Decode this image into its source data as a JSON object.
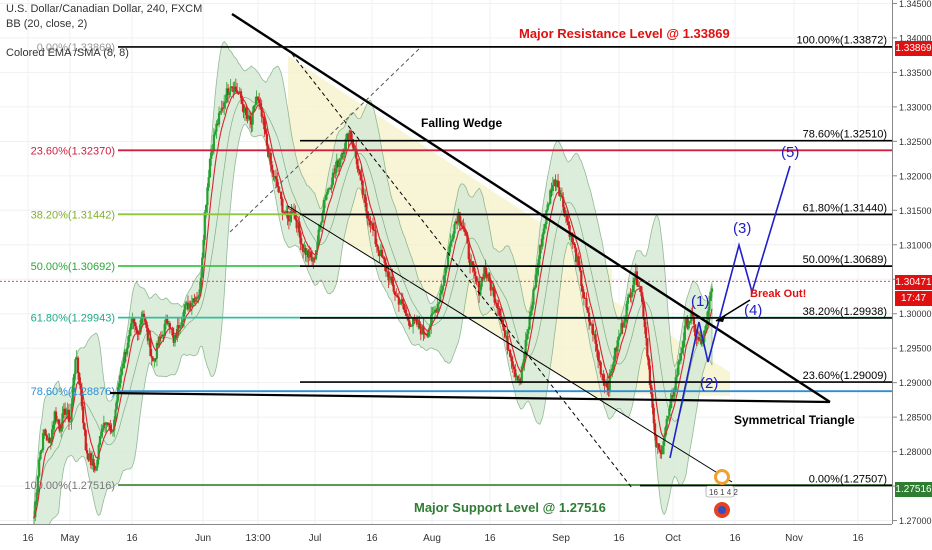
{
  "header": {
    "symbol_line": "U.S. Dollar/Canadian Dollar, 240, FXCM",
    "indicator_bb": "BB (20, close, 2)",
    "indicator_ema": "Colored EMA /SMA (8, 8)"
  },
  "price_badges": {
    "resistance": "1.33869",
    "current": "1.30471",
    "countdown": "17:47",
    "support": "1.27516"
  },
  "colors": {
    "bull_candle": "#26a030",
    "bear_candle": "#d02020",
    "band_fill": "#d6ead6",
    "wedge_fill": "#f5f2c8",
    "elliott": "#2020c8",
    "resistance": "#e01010",
    "support": "#2e7d32"
  },
  "chart_data": {
    "type": "candlestick",
    "y_axis": {
      "ylim": [
        1.2695,
        1.3455
      ],
      "ticks": [
        "1.34500",
        "1.34000",
        "1.33500",
        "1.33000",
        "1.32500",
        "1.32000",
        "1.31500",
        "1.31000",
        "1.30500",
        "1.30000",
        "1.29500",
        "1.29000",
        "1.28500",
        "1.28000",
        "1.27500",
        "1.27000"
      ]
    },
    "x_axis": {
      "ticks": [
        "16",
        "May",
        "16",
        "Jun",
        "13:00",
        "Jul",
        "16",
        "Aug",
        "16",
        "Sep",
        "16",
        "Oct",
        "16",
        "Nov",
        "16"
      ]
    },
    "price_path": [
      1.2705,
      1.279,
      1.283,
      1.281,
      1.2855,
      1.2835,
      1.286,
      1.2845,
      1.294,
      1.289,
      1.2805,
      1.2785,
      1.2775,
      1.2835,
      1.285,
      1.282,
      1.2875,
      1.2925,
      1.2955,
      1.2985,
      1.297,
      1.3005,
      1.2965,
      1.293,
      1.2955,
      1.2975,
      1.2995,
      1.2955,
      1.2985,
      1.3005,
      1.3015,
      1.3025,
      1.303,
      1.3145,
      1.3225,
      1.3265,
      1.329,
      1.3315,
      1.3335,
      1.3325,
      1.3312,
      1.3285,
      1.3275,
      1.3315,
      1.3285,
      1.3245,
      1.3205,
      1.3185,
      1.3155,
      1.3135,
      1.3155,
      1.3125,
      1.3095,
      1.3085,
      1.3075,
      1.3115,
      1.3165,
      1.3185,
      1.3205,
      1.3225,
      1.3245,
      1.3265,
      1.3235,
      1.3195,
      1.3155,
      1.3135,
      1.3105,
      1.3085,
      1.3065,
      1.3045,
      1.3025,
      1.3015,
      1.2995,
      1.2985,
      1.2985,
      1.2975,
      1.2975,
      1.2995,
      1.3015,
      1.3045,
      1.3085,
      1.3125,
      1.3145,
      1.3125,
      1.3085,
      1.3055,
      1.3035,
      1.3065,
      1.3045,
      1.3025,
      1.3005,
      1.2965,
      1.2945,
      1.2915,
      1.2905,
      1.2955,
      1.3005,
      1.3055,
      1.3105,
      1.3145,
      1.3185,
      1.3195,
      1.3165,
      1.3135,
      1.3105,
      1.3075,
      1.3035,
      1.2995,
      1.2975,
      1.2935,
      1.2905,
      1.2895,
      1.2935,
      1.2965,
      1.2995,
      1.3025,
      1.3055,
      1.3045,
      1.2985,
      1.2905,
      1.2815,
      1.2795,
      1.2835,
      1.2865,
      1.2905,
      1.2945,
      1.2985,
      1.2995,
      1.2965,
      1.2955,
      1.2985,
      1.3045
    ],
    "fib_levels_left": [
      {
        "label": "0.00%(1.33869)",
        "price": 1.33869
      },
      {
        "label": "23.60%(1.32370)",
        "price": 1.3237
      },
      {
        "label": "38.20%(1.31442)",
        "price": 1.31442
      },
      {
        "label": "50.00%(1.30692)",
        "price": 1.30692
      },
      {
        "label": "61.80%(1.29943)",
        "price": 1.29943
      },
      {
        "label": "78.60%(1.28876)",
        "price": 1.28876
      },
      {
        "label": "100.00%(1.27516)",
        "price": 1.27516
      }
    ],
    "fib_levels_right": [
      {
        "label": "100.00%(1.33872)",
        "price": 1.33872
      },
      {
        "label": "78.60%(1.32510)",
        "price": 1.3251
      },
      {
        "label": "61.80%(1.31440)",
        "price": 1.3144
      },
      {
        "label": "50.00%(1.30689)",
        "price": 1.30689
      },
      {
        "label": "38.20%(1.29938)",
        "price": 1.29938
      },
      {
        "label": "23.60%(1.29009)",
        "price": 1.29009
      },
      {
        "label": "0.00%(1.27507)",
        "price": 1.27507
      }
    ],
    "current_price": 1.30471,
    "annotations": {
      "resistance": "Major Resistance Level @ 1.33869",
      "support": "Major Support Level @ 1.27516",
      "falling_wedge": "Falling Wedge",
      "symmetrical_triangle": "Symmetrical Triangle",
      "break_out": "Break Out!",
      "wave_1": "(1)",
      "wave_2": "(2)",
      "wave_3": "(3)",
      "wave_4": "(4)",
      "wave_5": "(5)",
      "logo_text": "16 1 4 2"
    }
  }
}
